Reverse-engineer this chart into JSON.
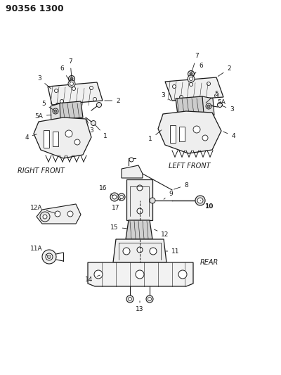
{
  "title_code": "90356 1300",
  "background_color": "#ffffff",
  "line_color": "#1a1a1a",
  "figsize": [
    4.0,
    5.33
  ],
  "dpi": 100,
  "right_front_label": "RIGHT FRONT",
  "left_front_label": "LEFT FRONT",
  "rear_label": "REAR",
  "title_fontsize": 9,
  "label_fontsize": 6.5,
  "section_label_fontsize": 7
}
